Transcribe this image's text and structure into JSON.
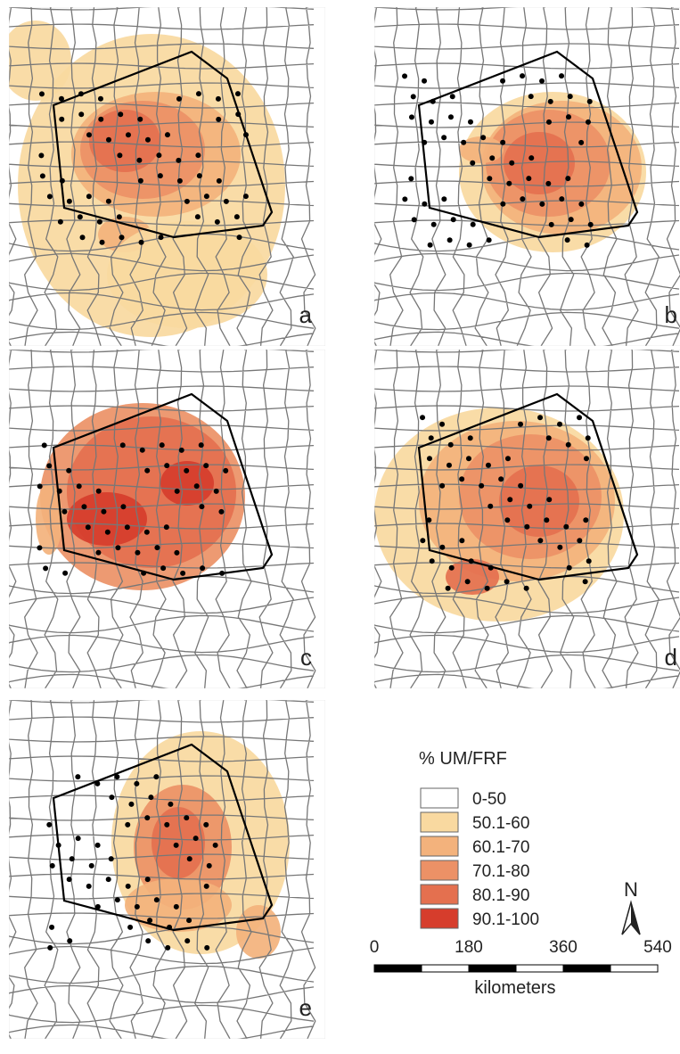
{
  "panels": [
    {
      "label": "a"
    },
    {
      "label": "b"
    },
    {
      "label": "c"
    },
    {
      "label": "d"
    },
    {
      "label": "e"
    }
  ],
  "legend": {
    "title": "% UM/FRF",
    "items": [
      {
        "label": "0-50",
        "color": "#ffffff"
      },
      {
        "label": "50.1-60",
        "color": "#f9d9a0"
      },
      {
        "label": "60.1-70",
        "color": "#f3b27c"
      },
      {
        "label": "70.1-80",
        "color": "#ec9166"
      },
      {
        "label": "80.1-90",
        "color": "#e4704f"
      },
      {
        "label": "90.1-100",
        "color": "#d63d2c"
      }
    ]
  },
  "north": "N",
  "scale": {
    "ticks": [
      0,
      180,
      360,
      540
    ],
    "unit": "kilometers"
  }
}
